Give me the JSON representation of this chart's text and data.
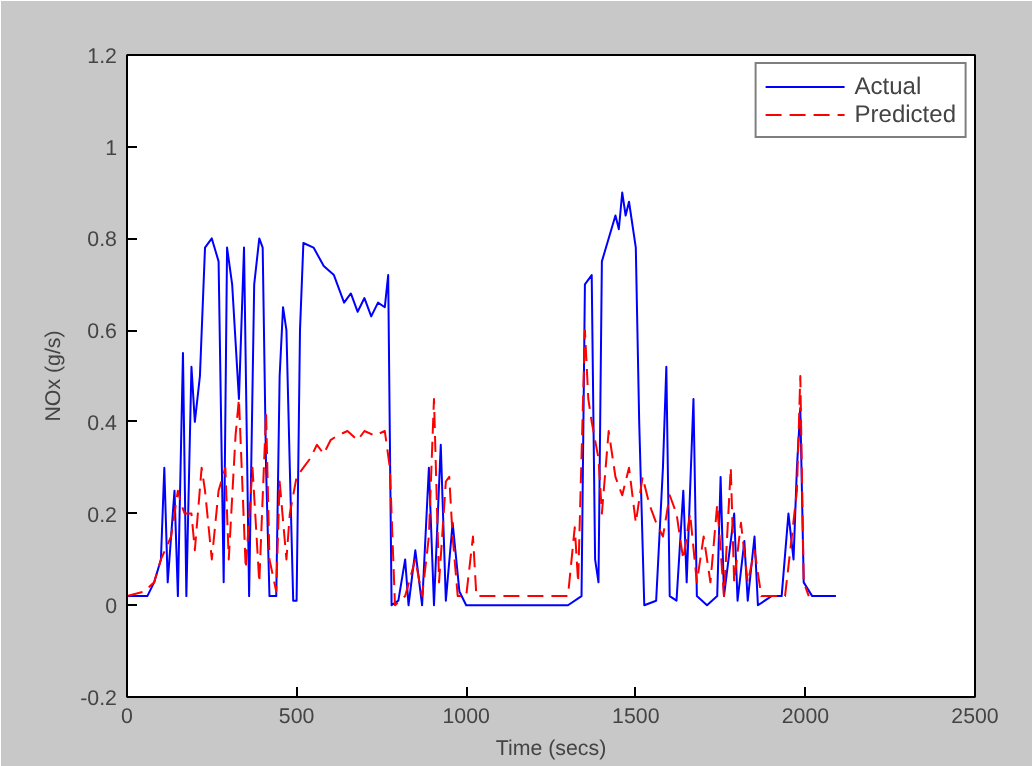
{
  "chart_data": {
    "type": "line",
    "xlabel": "Time (secs)",
    "ylabel": "NOx (g/s)",
    "xlim": [
      0,
      2500
    ],
    "ylim": [
      -0.2,
      1.2
    ],
    "xticks": [
      0,
      500,
      1000,
      1500,
      2000,
      2500
    ],
    "yticks": [
      -0.2,
      0,
      0.2,
      0.4,
      0.6,
      0.8,
      1,
      1.2
    ],
    "grid": false,
    "legend": "top right",
    "marker": "none",
    "series": [
      {
        "name": "Actual",
        "color": "#0000ff",
        "line_style": "solid",
        "x": [
          0,
          60,
          80,
          100,
          110,
          120,
          140,
          150,
          165,
          175,
          190,
          200,
          215,
          230,
          250,
          270,
          285,
          295,
          310,
          330,
          345,
          360,
          375,
          390,
          400,
          410,
          420,
          440,
          450,
          460,
          470,
          480,
          490,
          500,
          510,
          520,
          550,
          580,
          610,
          640,
          660,
          680,
          700,
          720,
          740,
          760,
          770,
          780,
          800,
          820,
          830,
          850,
          870,
          890,
          905,
          925,
          940,
          960,
          980,
          1000,
          1050,
          1100,
          1300,
          1340,
          1350,
          1370,
          1380,
          1390,
          1400,
          1420,
          1440,
          1450,
          1460,
          1470,
          1480,
          1500,
          1510,
          1525,
          1560,
          1580,
          1590,
          1600,
          1620,
          1640,
          1650,
          1670,
          1680,
          1710,
          1740,
          1750,
          1760,
          1790,
          1800,
          1820,
          1830,
          1850,
          1860,
          1900,
          1930,
          1950,
          1965,
          1975,
          1985,
          1995,
          2020,
          2090
        ],
        "values": [
          0.02,
          0.02,
          0.05,
          0.1,
          0.3,
          0.05,
          0.25,
          0.02,
          0.55,
          0.02,
          0.52,
          0.4,
          0.5,
          0.78,
          0.8,
          0.75,
          0.05,
          0.78,
          0.7,
          0.45,
          0.78,
          0.02,
          0.7,
          0.8,
          0.78,
          0.3,
          0.02,
          0.02,
          0.5,
          0.65,
          0.6,
          0.3,
          0.01,
          0.01,
          0.6,
          0.79,
          0.78,
          0.74,
          0.72,
          0.66,
          0.68,
          0.64,
          0.67,
          0.63,
          0.66,
          0.65,
          0.72,
          0.0,
          0.01,
          0.1,
          0.0,
          0.12,
          0.0,
          0.3,
          0.0,
          0.35,
          0.01,
          0.18,
          0.03,
          0.0,
          0.0,
          0.0,
          0.0,
          0.02,
          0.7,
          0.72,
          0.1,
          0.05,
          0.75,
          0.8,
          0.85,
          0.82,
          0.9,
          0.85,
          0.88,
          0.78,
          0.4,
          0.0,
          0.01,
          0.3,
          0.52,
          0.02,
          0.01,
          0.25,
          0.05,
          0.45,
          0.02,
          0.0,
          0.02,
          0.28,
          0.02,
          0.2,
          0.01,
          0.14,
          0.01,
          0.15,
          0.0,
          0.02,
          0.02,
          0.2,
          0.1,
          0.3,
          0.43,
          0.05,
          0.02,
          0.02
        ]
      },
      {
        "name": "Predicted",
        "color": "#ff0000",
        "line_style": "dashed",
        "x": [
          0,
          50,
          80,
          100,
          130,
          150,
          160,
          170,
          190,
          200,
          220,
          230,
          250,
          270,
          290,
          300,
          320,
          330,
          350,
          370,
          390,
          410,
          420,
          440,
          450,
          470,
          480,
          500,
          520,
          540,
          560,
          580,
          600,
          620,
          650,
          680,
          700,
          730,
          760,
          775,
          790,
          820,
          850,
          870,
          890,
          905,
          920,
          940,
          950,
          960,
          975,
          1000,
          1020,
          1030,
          1050,
          1300,
          1320,
          1330,
          1350,
          1360,
          1370,
          1390,
          1400,
          1420,
          1440,
          1460,
          1480,
          1500,
          1520,
          1540,
          1560,
          1580,
          1600,
          1620,
          1640,
          1660,
          1680,
          1700,
          1720,
          1740,
          1760,
          1780,
          1790,
          1810,
          1830,
          1850,
          1870,
          1900,
          1940,
          1960,
          1975,
          1985,
          1995,
          2010
        ],
        "values": [
          0.02,
          0.03,
          0.05,
          0.1,
          0.15,
          0.25,
          0.22,
          0.2,
          0.2,
          0.12,
          0.3,
          0.25,
          0.1,
          0.25,
          0.3,
          0.1,
          0.37,
          0.45,
          0.08,
          0.3,
          0.05,
          0.42,
          0.1,
          0.03,
          0.27,
          0.1,
          0.2,
          0.28,
          0.3,
          0.32,
          0.35,
          0.33,
          0.36,
          0.37,
          0.38,
          0.36,
          0.38,
          0.37,
          0.38,
          0.3,
          0.0,
          0.02,
          0.1,
          0.02,
          0.15,
          0.45,
          0.05,
          0.27,
          0.28,
          0.15,
          0.02,
          0.02,
          0.15,
          0.02,
          0.02,
          0.02,
          0.17,
          0.05,
          0.6,
          0.45,
          0.4,
          0.32,
          0.2,
          0.38,
          0.28,
          0.24,
          0.3,
          0.18,
          0.28,
          0.22,
          0.18,
          0.15,
          0.24,
          0.2,
          0.1,
          0.2,
          0.05,
          0.15,
          0.05,
          0.22,
          0.02,
          0.3,
          0.05,
          0.18,
          0.05,
          0.12,
          0.02,
          0.02,
          0.02,
          0.15,
          0.25,
          0.5,
          0.05,
          0.02
        ]
      }
    ]
  }
}
